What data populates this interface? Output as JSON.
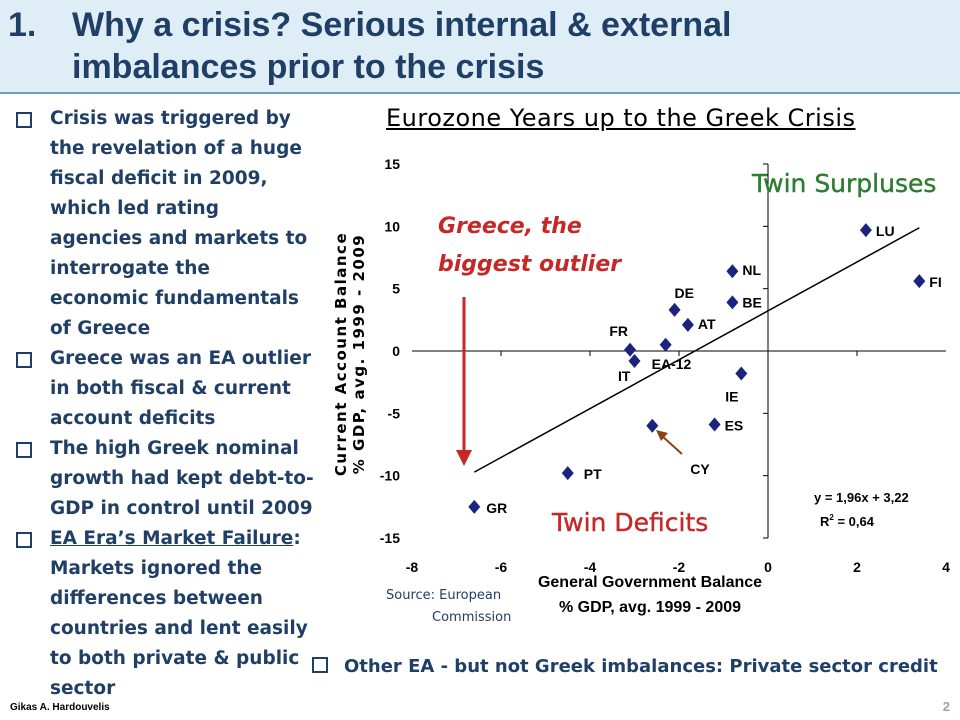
{
  "slide": {
    "title_number": "1.",
    "title_line1": "Why a crisis? Serious internal & external",
    "title_line2": "imbalances prior to the crisis",
    "bullets": [
      {
        "text": "Crisis was triggered by the revelation of a huge fiscal deficit in 2009, which led rating agencies and markets to interrogate the economic fundamentals of Greece"
      },
      {
        "pre": "Greece was an EA ",
        "hl1": "outlier",
        "mid": " in both ",
        "hl2": "fiscal",
        "mid2": " & ",
        "hl3": "current account deficits"
      },
      {
        "text": "The  high Greek nominal growth had kept debt-to-GDP in control until 2009"
      },
      {
        "ul": "EA Era’s Market Failure",
        "rest": ": Markets ignored the differences between countries and lent easily to both private & public sector"
      }
    ],
    "footer_bullet": "Other EA - but not Greek  imbalances: Private sector credit",
    "author": "Gikas A. Hardouvelis",
    "page_number": "2"
  },
  "chart_data": {
    "type": "scatter",
    "title": "Eurozone Years up to the  Greek Crisis",
    "ylabel_line1": "Current Account Balance",
    "ylabel_line2": "% GDP, avg. 1999 - 2009",
    "xlabel_line1": "General Government Balance",
    "xlabel_line2": "% GDP, avg. 1999 - 2009",
    "xlim": [
      -8,
      4
    ],
    "ylim": [
      -15,
      15
    ],
    "xticks": [
      -8,
      -6,
      -4,
      -2,
      0,
      2,
      4
    ],
    "yticks": [
      15,
      10,
      5,
      0,
      -5,
      -10,
      -15
    ],
    "points": [
      {
        "label": "LU",
        "x": 2.2,
        "y": 9.7
      },
      {
        "label": "FI",
        "x": 3.4,
        "y": 5.6
      },
      {
        "label": "NL",
        "x": -0.8,
        "y": 6.4
      },
      {
        "label": "BE",
        "x": -0.8,
        "y": 3.9
      },
      {
        "label": "DE",
        "x": -2.1,
        "y": 3.3
      },
      {
        "label": "AT",
        "x": -1.8,
        "y": 2.1
      },
      {
        "label": "FR",
        "x": -3.1,
        "y": 0.1
      },
      {
        "label": "IT",
        "x": -3.0,
        "y": -0.8
      },
      {
        "label": "EA-12",
        "x": -2.3,
        "y": 0.5
      },
      {
        "label": "IE",
        "x": -0.6,
        "y": -1.8
      },
      {
        "label": "ES",
        "x": -1.2,
        "y": -5.9
      },
      {
        "label": "CY",
        "x": -2.6,
        "y": -6.0
      },
      {
        "label": "PT",
        "x": -4.5,
        "y": -9.8
      },
      {
        "label": "GR",
        "x": -6.6,
        "y": -12.5
      }
    ],
    "trendline": {
      "slope": 1.96,
      "intercept": 3.22,
      "x_range": [
        -6.6,
        3.4
      ]
    },
    "equation": "y = 1,96x + 3,22",
    "r2_prefix": "R",
    "r2_sup": "2",
    "r2_value": " = 0,64",
    "annotation_greece_line1": "Greece, the",
    "annotation_greece_line2": "biggest outlier",
    "quadrant_top": "Twin Surpluses",
    "quadrant_bottom": "Twin Deficits",
    "source_line1": "Source: European",
    "source_line2": "Commission",
    "marker_color": "#1a237e",
    "annotation_color": "#c62828",
    "surplus_color": "#2e7d32",
    "deficit_color": "#c62828",
    "cy_arrow_color": "#8b4513"
  }
}
